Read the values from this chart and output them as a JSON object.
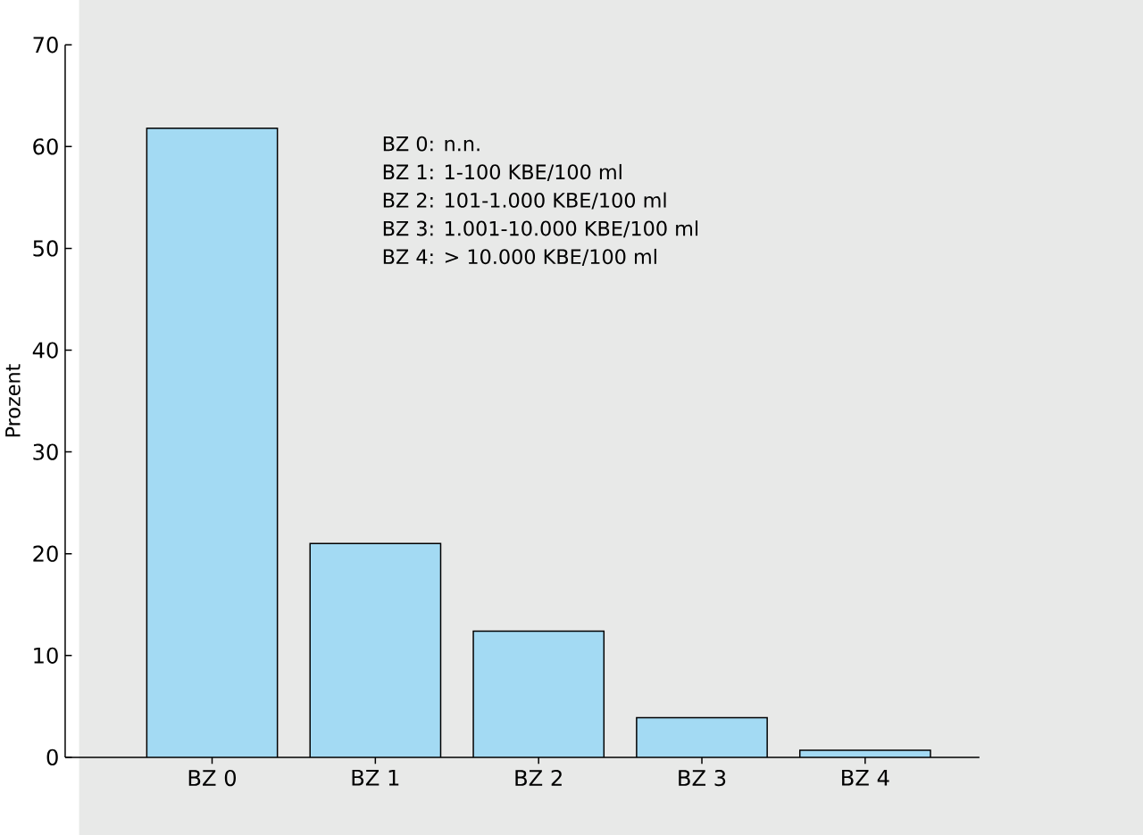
{
  "chart_data": {
    "type": "bar",
    "ylabel": "Prozent",
    "categories": [
      "BZ 0",
      "BZ 1",
      "BZ 2",
      "BZ 3",
      "BZ 4"
    ],
    "values": [
      61.8,
      21.0,
      12.4,
      3.9,
      0.7
    ],
    "color": "#a3daf3",
    "ylim": [
      0,
      70
    ],
    "yticks": [
      0,
      10,
      20,
      30,
      40,
      50,
      60,
      70
    ],
    "annotations": [
      "BZ 0:  n.n.",
      "BZ 1: 1-100 KBE/100 ml",
      "BZ 2: 101-1.000 KBE/100 ml",
      "BZ 3: 1.001-10.000 KBE/100 ml",
      "BZ 4: > 10.000 KBE/100 ml"
    ]
  }
}
